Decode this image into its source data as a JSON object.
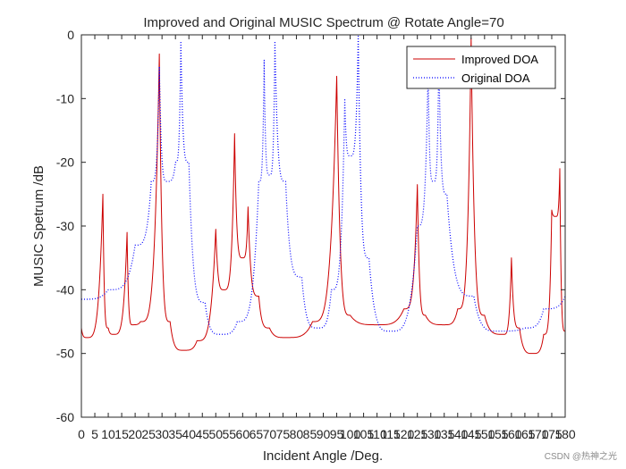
{
  "chart_data": {
    "type": "line",
    "title": "Improved and Original MUSIC Spectrum @ Rotate Angle=70",
    "xlabel": "Incident Angle /Deg.",
    "ylabel": "MUSIC Spetrum /dB",
    "xlim": [
      0,
      180
    ],
    "ylim": [
      -60,
      0
    ],
    "xticks": [
      0,
      5,
      10,
      15,
      20,
      25,
      30,
      35,
      40,
      45,
      50,
      55,
      60,
      65,
      70,
      75,
      80,
      85,
      90,
      95,
      100,
      105,
      110,
      115,
      120,
      125,
      130,
      135,
      140,
      145,
      150,
      155,
      160,
      165,
      170,
      175,
      180
    ],
    "xtick_labels": [
      "0",
      "5",
      "10",
      "15",
      "20",
      "25",
      "30",
      "35",
      "40",
      "45",
      "50",
      "55",
      "60",
      "65",
      "70",
      "75",
      "80",
      "85",
      "90",
      "95",
      "100",
      "105",
      "110",
      "115",
      "120",
      "125",
      "130",
      "135",
      "140",
      "145",
      "150",
      "155",
      "160",
      "165",
      "170",
      "175",
      "180"
    ],
    "yticks": [
      0,
      -10,
      -20,
      -30,
      -40,
      -50,
      -60
    ],
    "ytick_labels": [
      "0",
      "-10",
      "-20",
      "-30",
      "-40",
      "-50",
      "-60"
    ],
    "legend_position": "top-right",
    "series": [
      {
        "name": "Improved DOA",
        "color": "#cc0000",
        "style": "solid",
        "baseline": -48,
        "peaks": [
          {
            "x": 8,
            "y": -25,
            "width": 0.35
          },
          {
            "x": 17,
            "y": -31,
            "width": 0.35
          },
          {
            "x": 29,
            "y": -3,
            "width": 0.35
          },
          {
            "x": 50,
            "y": -30.5,
            "width": 0.35
          },
          {
            "x": 57,
            "y": -15.5,
            "width": 0.35
          },
          {
            "x": 62,
            "y": -27,
            "width": 0.35
          },
          {
            "x": 95,
            "y": -6.5,
            "width": 0.35
          },
          {
            "x": 125,
            "y": -23.5,
            "width": 0.35
          },
          {
            "x": 145,
            "y": -0.5,
            "width": 0.35
          },
          {
            "x": 160,
            "y": -35,
            "width": 0.35
          },
          {
            "x": 178,
            "y": -21,
            "width": 0.35
          },
          {
            "x": 175,
            "y": -27.5,
            "width": 0.35
          },
          {
            "x": 176.5,
            "y": -28.5,
            "width": 0.35
          }
        ],
        "points": [
          [
            0,
            -46
          ],
          [
            2,
            -47.5
          ],
          [
            8,
            -25
          ],
          [
            10,
            -46
          ],
          [
            12,
            -47
          ],
          [
            17,
            -31
          ],
          [
            19,
            -45.5
          ],
          [
            22,
            -45
          ],
          [
            29,
            -3
          ],
          [
            33,
            -45
          ],
          [
            38,
            -49.5
          ],
          [
            43,
            -48
          ],
          [
            50,
            -30.5
          ],
          [
            53,
            -40
          ],
          [
            57,
            -15.5
          ],
          [
            60,
            -35
          ],
          [
            62,
            -27
          ],
          [
            66,
            -41
          ],
          [
            70,
            -46
          ],
          [
            76,
            -47.5
          ],
          [
            86,
            -45
          ],
          [
            95,
            -6.5
          ],
          [
            100,
            -44
          ],
          [
            110,
            -45.5
          ],
          [
            120,
            -43
          ],
          [
            125,
            -23.5
          ],
          [
            128,
            -44
          ],
          [
            135,
            -45.5
          ],
          [
            140,
            -43
          ],
          [
            145,
            -0.5
          ],
          [
            150,
            -44
          ],
          [
            157,
            -47
          ],
          [
            160,
            -35
          ],
          [
            163,
            -46
          ],
          [
            168,
            -50
          ],
          [
            172,
            -47
          ],
          [
            175,
            -27.5
          ],
          [
            176.5,
            -28.5
          ],
          [
            178,
            -21
          ],
          [
            180,
            -46.5
          ]
        ]
      },
      {
        "name": "Original DOA",
        "color": "#0000ff",
        "style": "dotted",
        "points": [
          [
            0,
            -41.5
          ],
          [
            10,
            -40
          ],
          [
            20,
            -33
          ],
          [
            26,
            -23
          ],
          [
            29,
            -5
          ],
          [
            32,
            -23
          ],
          [
            35,
            -20
          ],
          [
            37,
            -1
          ],
          [
            40,
            -20
          ],
          [
            46,
            -42
          ],
          [
            52,
            -47
          ],
          [
            58,
            -45
          ],
          [
            66,
            -23
          ],
          [
            68,
            -4
          ],
          [
            70,
            -22
          ],
          [
            72,
            -1
          ],
          [
            76,
            -23
          ],
          [
            82,
            -38
          ],
          [
            88,
            -46
          ],
          [
            93,
            -40
          ],
          [
            98,
            -10
          ],
          [
            100,
            -19
          ],
          [
            103,
            0
          ],
          [
            107,
            -35
          ],
          [
            115,
            -46.5
          ],
          [
            125,
            -30
          ],
          [
            129,
            -5
          ],
          [
            131,
            -23
          ],
          [
            133,
            -3
          ],
          [
            136,
            -25
          ],
          [
            146,
            -41
          ],
          [
            155,
            -46.5
          ],
          [
            165,
            -46
          ],
          [
            172,
            -43
          ],
          [
            180,
            -41
          ]
        ]
      }
    ]
  },
  "watermark": "CSDN @热神之光"
}
